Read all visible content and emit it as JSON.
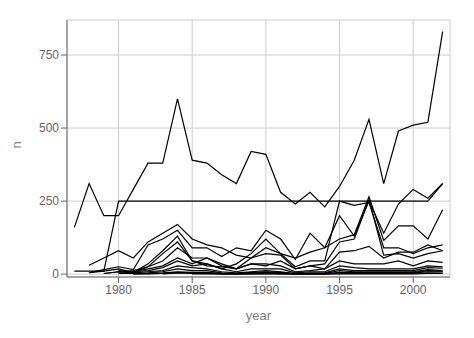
{
  "chart_data": {
    "type": "line",
    "xlabel": "year",
    "ylabel": "n",
    "xlim": [
      1976.5,
      2002.5
    ],
    "ylim": [
      -10,
      870
    ],
    "xticks": [
      1980,
      1985,
      1990,
      1995,
      2000
    ],
    "yticks": [
      0,
      250,
      500,
      750
    ],
    "grid": true,
    "color": "#000000",
    "series": [
      {
        "x": [
          1977,
          1978,
          1979,
          1980,
          1981,
          1982,
          1983,
          1984,
          1985,
          1986,
          1987,
          1988,
          1989,
          1990,
          1991,
          1992,
          1993,
          1994,
          1995,
          1996,
          1997,
          1998,
          1999,
          2000,
          2001,
          2002
        ],
        "values": [
          160,
          310,
          200,
          200,
          290,
          380,
          380,
          600,
          390,
          380,
          340,
          310,
          420,
          410,
          280,
          240,
          280,
          230,
          300,
          390,
          530,
          310,
          490,
          510,
          520,
          830
        ]
      },
      {
        "x": [
          1977,
          1978,
          1979,
          1980,
          1981,
          1982,
          1983,
          1984,
          1985,
          1986,
          1987,
          1988,
          1989,
          1990,
          1991,
          1992,
          1993,
          1994,
          1995,
          1996,
          1997,
          1998,
          1999,
          2000,
          2001,
          2002
        ],
        "values": [
          10,
          10,
          10,
          250,
          250,
          250,
          250,
          250,
          250,
          250,
          250,
          250,
          250,
          250,
          250,
          250,
          250,
          250,
          250,
          250,
          250,
          250,
          250,
          250,
          250,
          310
        ]
      },
      {
        "x": [
          1978,
          1979,
          1980,
          1981,
          1982,
          1983,
          1984,
          1985,
          1986,
          1987,
          1988,
          1989,
          1990,
          1991,
          1992,
          1993,
          1994,
          1995,
          1996,
          1997,
          1998,
          1999,
          2000,
          2001,
          2002
        ],
        "values": [
          5,
          15,
          25,
          15,
          100,
          120,
          150,
          90,
          90,
          60,
          90,
          80,
          150,
          120,
          50,
          140,
          90,
          200,
          130,
          250,
          140,
          240,
          290,
          260,
          310
        ]
      },
      {
        "x": [
          1978,
          1979,
          1980,
          1981,
          1982,
          1983,
          1984,
          1985,
          1986,
          1987,
          1988,
          1989,
          1990,
          1991,
          1992,
          1993,
          1994,
          1995,
          1996,
          1997,
          1998,
          1999,
          2000,
          2001,
          2002
        ],
        "values": [
          30,
          55,
          80,
          55,
          110,
          140,
          170,
          120,
          100,
          90,
          65,
          55,
          90,
          70,
          55,
          75,
          90,
          120,
          135,
          265,
          115,
          165,
          165,
          120,
          220
        ]
      },
      {
        "x": [
          1978,
          1979,
          1980,
          1981,
          1982,
          1983,
          1984,
          1985,
          1986,
          1987,
          1988,
          1989,
          1990,
          1991,
          1992,
          1993,
          1994,
          1995,
          1996,
          1997,
          1998,
          1999,
          2000,
          2001,
          2002
        ],
        "values": [
          5,
          10,
          18,
          5,
          35,
          80,
          130,
          45,
          35,
          18,
          35,
          70,
          120,
          70,
          25,
          45,
          45,
          250,
          235,
          245,
          90,
          90,
          70,
          90,
          100
        ]
      },
      {
        "x": [
          1979,
          1980,
          1981,
          1982,
          1983,
          1984,
          1985,
          1986,
          1987,
          1988,
          1989,
          1990,
          1991,
          1992,
          1993,
          1994,
          1995,
          1996,
          1997,
          1998,
          1999,
          2000,
          2001,
          2002
        ],
        "values": [
          2,
          8,
          5,
          25,
          70,
          110,
          45,
          28,
          25,
          18,
          55,
          70,
          65,
          18,
          28,
          35,
          110,
          120,
          255,
          65,
          70,
          55,
          70,
          80
        ]
      },
      {
        "x": [
          1979,
          1980,
          1981,
          1982,
          1983,
          1984,
          1985,
          1986,
          1987,
          1988,
          1989,
          1990,
          1991,
          1992,
          1993,
          1994,
          1995,
          1996,
          1997,
          1998,
          1999,
          2000,
          2001,
          2002
        ],
        "values": [
          2,
          8,
          12,
          25,
          45,
          90,
          55,
          55,
          35,
          18,
          35,
          28,
          45,
          18,
          28,
          18,
          75,
          80,
          95,
          55,
          75,
          75,
          100,
          80
        ]
      },
      {
        "x": [
          1980,
          1981,
          1982,
          1983,
          1984,
          1985,
          1986,
          1987,
          1988,
          1989,
          1990,
          1991,
          1992,
          1993,
          1994,
          1995,
          1996,
          1997,
          1998,
          1999,
          2000,
          2001,
          2002
        ],
        "values": [
          12,
          8,
          18,
          28,
          55,
          35,
          55,
          28,
          18,
          35,
          35,
          28,
          8,
          12,
          18,
          45,
          35,
          35,
          35,
          45,
          28,
          45,
          40
        ]
      },
      {
        "x": [
          1980,
          1981,
          1982,
          1983,
          1984,
          1985,
          1986,
          1987,
          1988,
          1989,
          1990,
          1991,
          1992,
          1993,
          1994,
          1995,
          1996,
          1997,
          1998,
          1999,
          2000,
          2001,
          2002
        ],
        "values": [
          8,
          8,
          12,
          22,
          45,
          28,
          35,
          18,
          8,
          18,
          18,
          18,
          4,
          8,
          8,
          28,
          22,
          18,
          18,
          18,
          18,
          28,
          25
        ]
      },
      {
        "x": [
          1980,
          1981,
          1982,
          1983,
          1984,
          1985,
          1986,
          1987,
          1988,
          1989,
          1990,
          1991,
          1992,
          1993,
          1994,
          1995,
          1996,
          1997,
          1998,
          1999,
          2000,
          2001,
          2002
        ],
        "values": [
          4,
          4,
          8,
          12,
          28,
          22,
          18,
          8,
          4,
          8,
          12,
          8,
          2,
          4,
          4,
          18,
          12,
          12,
          12,
          12,
          12,
          22,
          20
        ]
      },
      {
        "x": [
          1980,
          1981,
          1982,
          1983,
          1984,
          1985,
          1986,
          1987,
          1988,
          1989,
          1990,
          1991,
          1992,
          1993,
          1994,
          1995,
          1996,
          1997,
          1998,
          1999,
          2000,
          2001,
          2002
        ],
        "values": [
          2,
          2,
          4,
          8,
          18,
          12,
          12,
          4,
          2,
          6,
          8,
          6,
          1,
          2,
          2,
          12,
          8,
          8,
          8,
          8,
          8,
          15,
          12
        ]
      },
      {
        "x": [
          1981,
          1982,
          1983,
          1984,
          1985,
          1986,
          1987,
          1988,
          1989,
          1990,
          1991,
          1992,
          1993,
          1994,
          1995,
          1996,
          1997,
          1998,
          1999,
          2000,
          2001,
          2002
        ],
        "values": [
          1,
          2,
          4,
          8,
          6,
          6,
          2,
          1,
          4,
          5,
          4,
          1,
          1,
          1,
          6,
          5,
          5,
          5,
          5,
          5,
          12,
          10
        ]
      },
      {
        "x": [
          1981,
          1982,
          1983,
          1984,
          1985,
          1986,
          1987,
          1988,
          1989,
          1990,
          1991,
          1992,
          1993,
          1994,
          1995,
          1996,
          1997,
          1998,
          1999,
          2000,
          2001,
          2002
        ],
        "values": [
          1,
          1,
          2,
          6,
          4,
          4,
          1,
          1,
          2,
          4,
          2,
          1,
          1,
          1,
          4,
          4,
          4,
          4,
          4,
          4,
          8,
          8
        ]
      },
      {
        "x": [
          1983,
          1984,
          1985,
          1986,
          1987,
          1988,
          1989,
          1990,
          1991,
          1992,
          1993,
          1994,
          1995,
          1996,
          1997,
          1998,
          1999,
          2000,
          2001,
          2002
        ],
        "values": [
          1,
          4,
          2,
          2,
          1,
          1,
          1,
          2,
          1,
          1,
          1,
          1,
          2,
          2,
          2,
          2,
          2,
          2,
          4,
          3
        ]
      },
      {
        "x": [
          1985,
          1986,
          1987,
          1988,
          1989,
          1990,
          1991,
          1992,
          1993,
          1994,
          1995,
          1996,
          1997,
          1998,
          1999,
          2000,
          2001,
          2002
        ],
        "values": [
          1,
          1,
          1,
          1,
          1,
          1,
          1,
          1,
          1,
          1,
          1,
          1,
          1,
          1,
          1,
          1,
          2,
          2
        ]
      }
    ]
  }
}
